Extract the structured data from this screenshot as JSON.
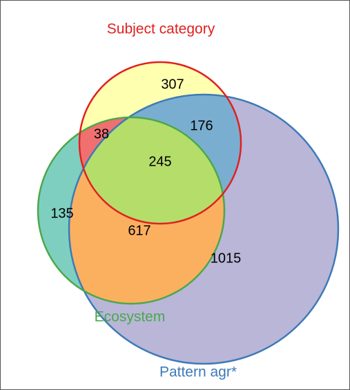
{
  "sets": [
    {
      "label": "Subject category"
    },
    {
      "label": "Ecosystem"
    },
    {
      "label": "Pattern agr*"
    }
  ],
  "regions": [
    {
      "count": 307
    },
    {
      "count": 38
    },
    {
      "count": 176
    },
    {
      "count": 245
    },
    {
      "count": 135
    },
    {
      "count": 617
    },
    {
      "count": 1015
    }
  ]
}
